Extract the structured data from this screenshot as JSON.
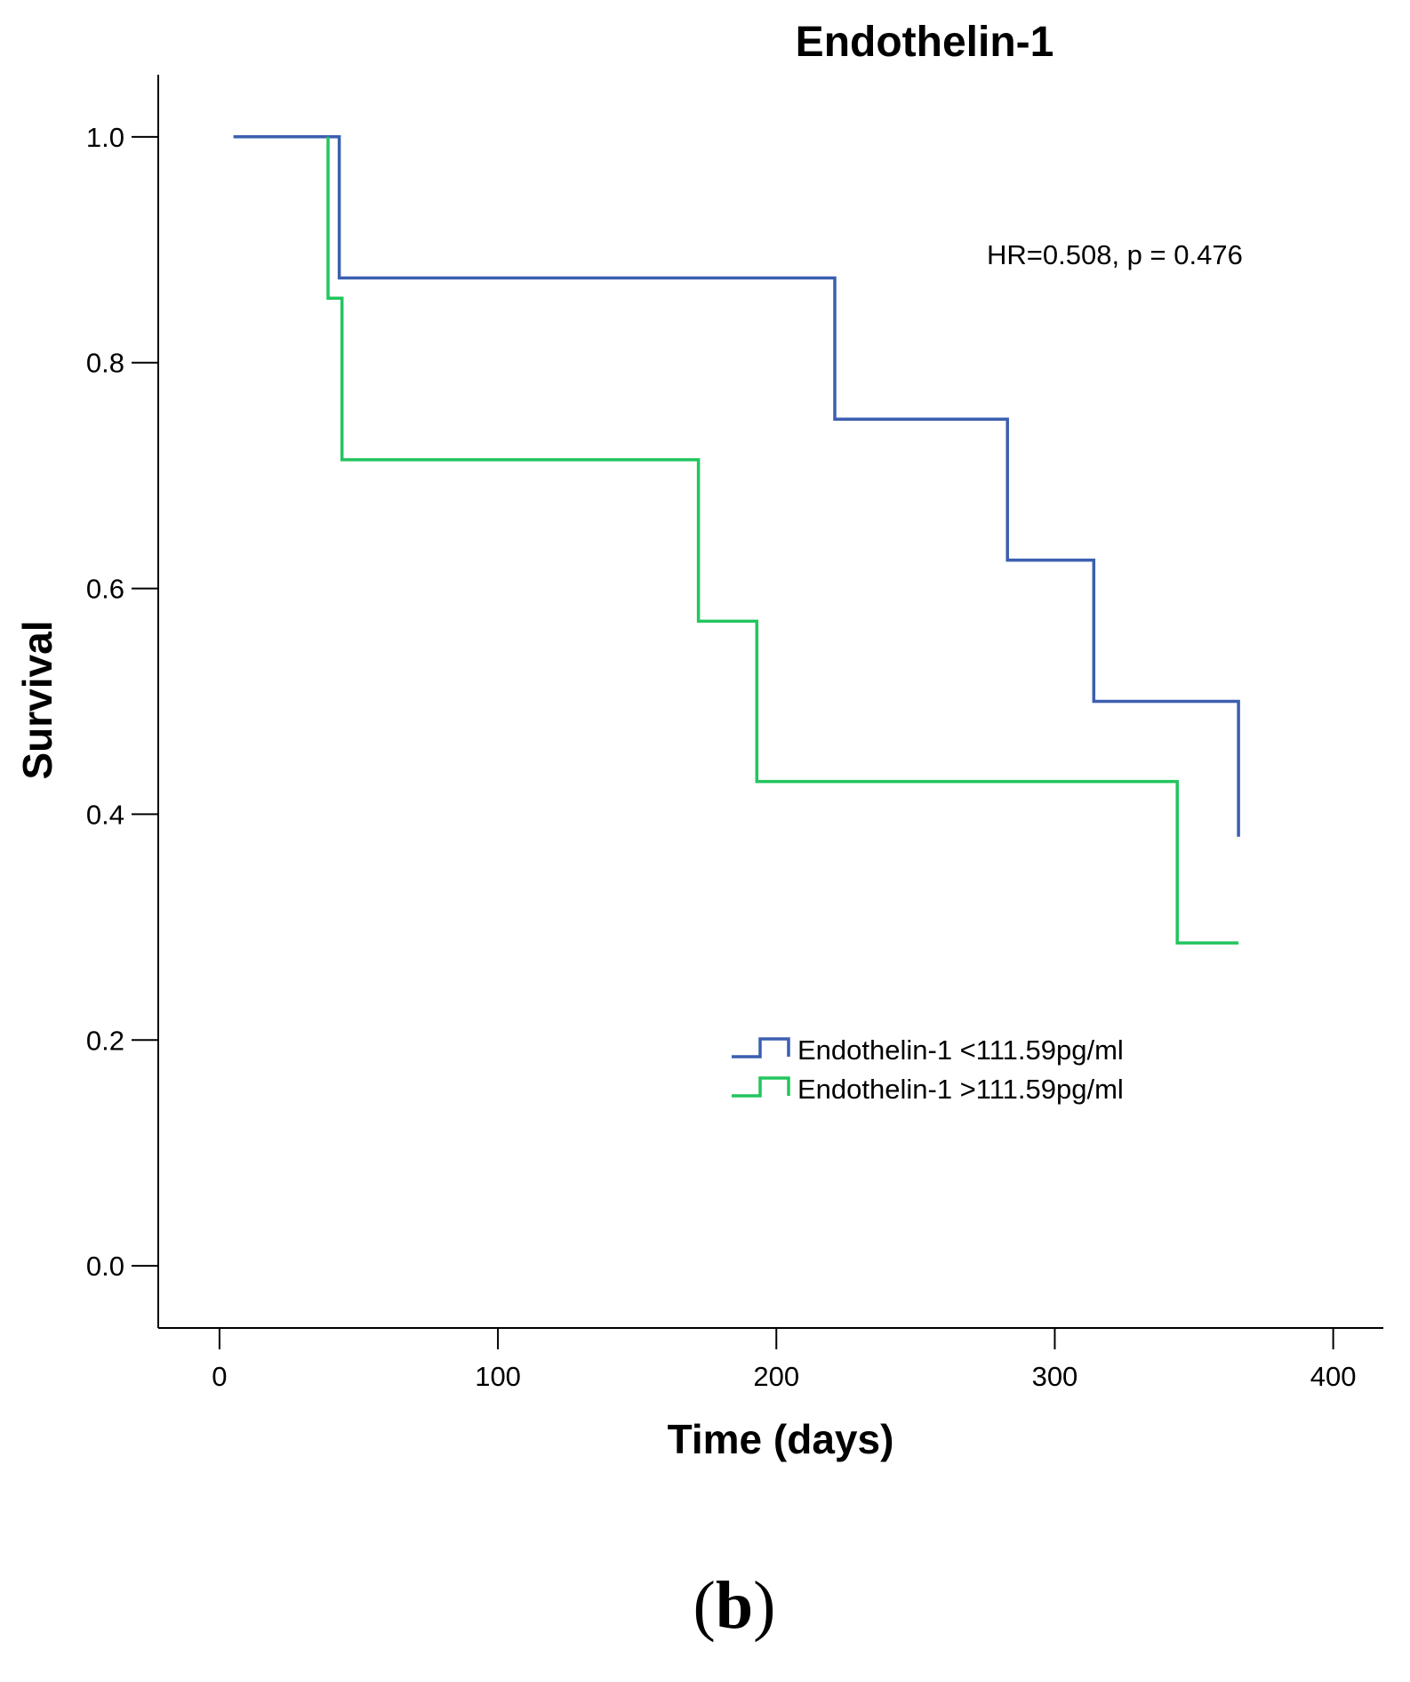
{
  "chart_data": {
    "type": "line",
    "subtype": "kaplan-meier step",
    "title": "Endothelin-1",
    "xlabel": "Time (days)",
    "ylabel": "Survival",
    "xlim": [
      -22,
      418
    ],
    "ylim": [
      -0.055,
      1.055
    ],
    "xticks": [
      0,
      100,
      200,
      300,
      400
    ],
    "xtick_labels": [
      "0",
      "100",
      "200",
      "300",
      "400"
    ],
    "yticks": [
      0.0,
      0.2,
      0.4,
      0.6,
      0.8,
      1.0
    ],
    "ytick_labels": [
      "0.0",
      "0.2",
      "0.4",
      "0.6",
      "0.8",
      "1.0"
    ],
    "grid": false,
    "annotation": "HR=0.508, p = 0.476",
    "panel_label": {
      "open": "(",
      "letter": "b",
      "close": ")"
    },
    "series": [
      {
        "name": "Endothelin-1 <111.59pg/ml",
        "color": "#3b5fb0",
        "x": [
          5,
          43,
          43,
          221,
          221,
          283,
          283,
          314,
          314,
          366,
          366
        ],
        "y": [
          1.0,
          1.0,
          0.875,
          0.875,
          0.75,
          0.75,
          0.625,
          0.625,
          0.5,
          0.5,
          0.38
        ]
      },
      {
        "name": "Endothelin-1 >111.59pg/ml",
        "color": "#22c55e",
        "x": [
          39,
          39,
          44,
          44,
          172,
          172,
          193,
          193,
          344,
          344,
          366
        ],
        "y": [
          1.0,
          0.857,
          0.857,
          0.714,
          0.714,
          0.571,
          0.571,
          0.429,
          0.429,
          0.286,
          0.286
        ]
      }
    ],
    "legend_position": "center-right"
  }
}
